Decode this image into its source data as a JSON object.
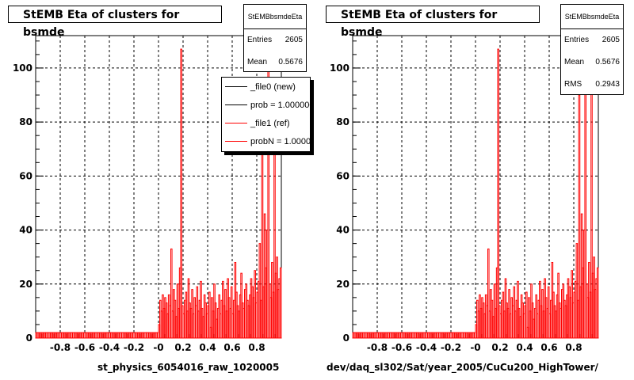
{
  "chart_data": [
    {
      "type": "bar",
      "title": "StEMB Eta of clusters for bsmde",
      "xlabel": "st_physics_6054016_raw_1020005",
      "ylabel": "",
      "xlim": [
        -1.0,
        1.0
      ],
      "ylim": [
        0,
        112
      ],
      "xticks": [
        "-0.8",
        "-0.6",
        "-0.4",
        "-0.2",
        "-0",
        "0.2",
        "0.4",
        "0.6",
        "0.8"
      ],
      "yticks": [
        "0",
        "20",
        "40",
        "60",
        "80",
        "100"
      ],
      "grid": true,
      "stats": {
        "name": "StEMBbsmdeEta",
        "entries_label": "Entries",
        "entries": "2605",
        "mean_label": "Mean",
        "mean": "0.5676"
      },
      "legend": {
        "placement": "top-right",
        "entries": [
          {
            "label": "_file0 (new)",
            "color": "#000000"
          },
          {
            "label": "prob = 1.000000",
            "color": "#000000"
          },
          {
            "label": "_file1 (ref)",
            "color": "#ff0000"
          },
          {
            "label": "probN = 1.000000",
            "color": "#ff0000"
          }
        ]
      },
      "series_color": "#ff0000"
    },
    {
      "type": "bar",
      "title": "StEMB Eta of clusters for bsmde",
      "xlabel": "dev/daq_sl302/Sat/year_2005/CuCu200_HighTower/",
      "ylabel": "",
      "xlim": [
        -1.0,
        1.0
      ],
      "ylim": [
        0,
        112
      ],
      "xticks": [
        "-0.8",
        "-0.6",
        "-0.4",
        "-0.2",
        "-0",
        "0.2",
        "0.4",
        "0.6",
        "0.8"
      ],
      "yticks": [
        "0",
        "20",
        "40",
        "60",
        "80",
        "100"
      ],
      "grid": true,
      "stats": {
        "name": "StEMBbsmdeEta",
        "entries_label": "Entries",
        "entries": "2605",
        "mean_label": "Mean",
        "mean": "0.5676",
        "rms_label": "RMS",
        "rms": "0.2943"
      },
      "series_color": "#ff0000"
    }
  ],
  "histogram": {
    "x_start": -1.0,
    "bin_width": 0.01,
    "counts": [
      2,
      2,
      2,
      2,
      2,
      2,
      2,
      2,
      2,
      2,
      2,
      2,
      2,
      2,
      2,
      2,
      2,
      2,
      2,
      2,
      2,
      2,
      2,
      2,
      2,
      2,
      2,
      2,
      2,
      2,
      2,
      2,
      2,
      2,
      2,
      2,
      2,
      2,
      2,
      2,
      2,
      2,
      2,
      2,
      2,
      2,
      2,
      2,
      2,
      2,
      2,
      2,
      2,
      2,
      2,
      2,
      2,
      2,
      2,
      2,
      2,
      2,
      2,
      2,
      2,
      2,
      2,
      2,
      2,
      2,
      2,
      2,
      2,
      2,
      2,
      2,
      2,
      2,
      2,
      2,
      2,
      2,
      2,
      2,
      2,
      2,
      2,
      2,
      2,
      2,
      2,
      2,
      2,
      2,
      2,
      2,
      2,
      2,
      2,
      2,
      5,
      14,
      10,
      16,
      11,
      15,
      13,
      9,
      16,
      12,
      33,
      10,
      18,
      14,
      8,
      20,
      11,
      26,
      107,
      12,
      9,
      14,
      17,
      10,
      22,
      13,
      11,
      18,
      9,
      15,
      12,
      19,
      10,
      14,
      21,
      11,
      8,
      16,
      13,
      9,
      12,
      17,
      4,
      15,
      10,
      20,
      13,
      7,
      11,
      16,
      9,
      14,
      21,
      12,
      18,
      10,
      22,
      15,
      11,
      19,
      9,
      14,
      28,
      17,
      12,
      10,
      16,
      24,
      13,
      11,
      18,
      20,
      14,
      12,
      16,
      22,
      19,
      15,
      25,
      13,
      17,
      21,
      35,
      14,
      90,
      19,
      46,
      26,
      40,
      107,
      20,
      15,
      28,
      17,
      93,
      24,
      30,
      18,
      22,
      26
    ]
  }
}
